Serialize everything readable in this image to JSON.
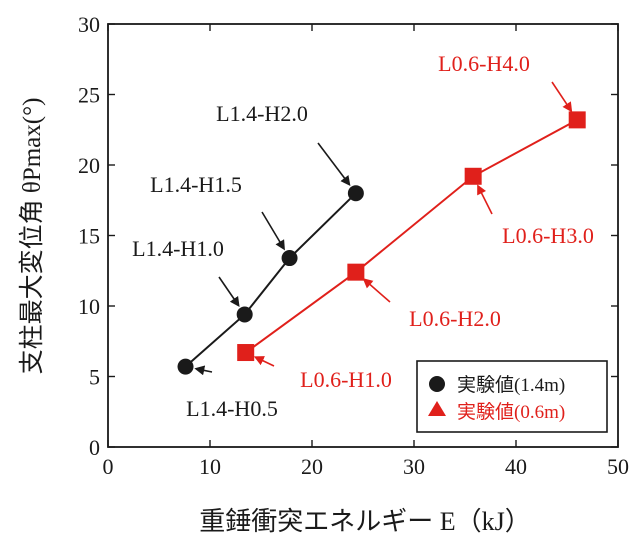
{
  "chart_data": {
    "type": "scatter",
    "xlabel": "重錘衝突エネルギー E（kJ）",
    "ylabel": "支柱最大変位角 θPmax(°)",
    "xlim": [
      0,
      50
    ],
    "ylim": [
      0,
      30
    ],
    "x_ticks": [
      "0",
      "10",
      "20",
      "30",
      "40",
      "50"
    ],
    "y_ticks": [
      "0",
      "5",
      "10",
      "15",
      "20",
      "25",
      "30"
    ],
    "grid": false,
    "legend_position": "bottom-right",
    "series": [
      {
        "name": "実験値(1.4m)",
        "marker": "circle",
        "color": "#1a1a1a",
        "points": [
          {
            "x": 7.6,
            "y": 5.7,
            "label": "L1.4-H0.5"
          },
          {
            "x": 13.4,
            "y": 9.4,
            "label": "L1.4-H1.0"
          },
          {
            "x": 17.8,
            "y": 13.4,
            "label": "L1.4-H1.5"
          },
          {
            "x": 24.3,
            "y": 18.0,
            "label": "L1.4-H2.0"
          }
        ]
      },
      {
        "name": "実験値(0.6m)",
        "marker": "triangle",
        "color": "#e0201b",
        "points": [
          {
            "x": 13.5,
            "y": 6.7,
            "label": "L0.6-H1.0"
          },
          {
            "x": 24.3,
            "y": 12.4,
            "label": "L0.6-H2.0"
          },
          {
            "x": 35.8,
            "y": 19.2,
            "label": "L0.6-H3.0"
          },
          {
            "x": 46.0,
            "y": 23.2,
            "label": "L0.6-H4.0"
          }
        ]
      }
    ]
  }
}
